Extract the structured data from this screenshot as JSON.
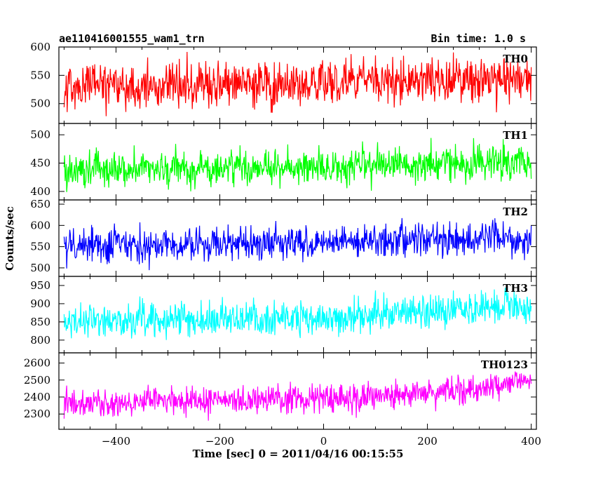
{
  "header": {
    "title": "ae110416001555_wam1_trn",
    "bin_time": "Bin time: 1.0 s"
  },
  "chart_data": {
    "type": "line",
    "xlabel": "Time [sec] 0 = 2011/04/16 00:15:55",
    "ylabel": "Counts/sec",
    "xlim": [
      -510,
      410
    ],
    "x_ticks": [
      -400,
      -200,
      0,
      200,
      400
    ],
    "x_range": [
      -500,
      400
    ],
    "bin_size": 1.0,
    "grid": false,
    "panels": [
      {
        "name": "TH0",
        "color": "#ff0000",
        "ylim": [
          465,
          600
        ],
        "y_ticks": [
          500,
          550,
          600
        ],
        "trend": {
          "x": [
            -500,
            400
          ],
          "y": [
            528,
            545
          ]
        },
        "spread": 20
      },
      {
        "name": "TH1",
        "color": "#00ff00",
        "ylim": [
          385,
          520
        ],
        "y_ticks": [
          400,
          450,
          500
        ],
        "trend": {
          "x": [
            -500,
            400
          ],
          "y": [
            437,
            452
          ]
        },
        "spread": 16
      },
      {
        "name": "TH2",
        "color": "#0000ff",
        "ylim": [
          480,
          660
        ],
        "y_ticks": [
          500,
          550,
          600,
          650
        ],
        "trend": {
          "x": [
            -500,
            400
          ],
          "y": [
            550,
            568
          ]
        },
        "spread": 20
      },
      {
        "name": "TH3",
        "color": "#00ffff",
        "ylim": [
          765,
          975
        ],
        "y_ticks": [
          800,
          850,
          900,
          950
        ],
        "trend": {
          "x": [
            -500,
            0,
            400
          ],
          "y": [
            852,
            860,
            895
          ]
        },
        "spread": 24
      },
      {
        "name": "TH0123",
        "color": "#ff00ff",
        "ylim": [
          2210,
          2660
        ],
        "y_ticks": [
          2300,
          2400,
          2500,
          2600
        ],
        "trend": {
          "x": [
            -500,
            0,
            300,
            400
          ],
          "y": [
            2365,
            2390,
            2450,
            2500
          ]
        },
        "spread": 42
      }
    ]
  }
}
